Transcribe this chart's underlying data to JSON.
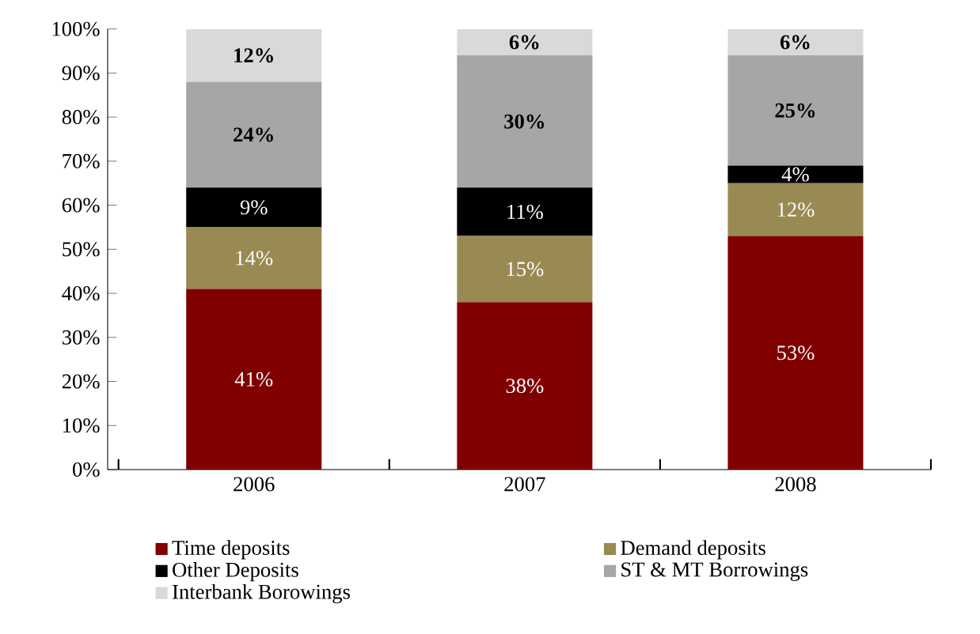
{
  "chart_data": {
    "type": "bar",
    "stacked": true,
    "categories": [
      "2006",
      "2007",
      "2008"
    ],
    "series": [
      {
        "name": "Time deposits",
        "color": "#800000",
        "values": [
          41,
          38,
          53
        ],
        "value_labels": [
          "41%",
          "38%",
          "53%"
        ]
      },
      {
        "name": "Demand deposits",
        "color": "#998a53",
        "values": [
          14,
          15,
          12
        ],
        "value_labels": [
          "14%",
          "15%",
          "12%"
        ]
      },
      {
        "name": "Other Deposits",
        "color": "#000000",
        "values": [
          9,
          11,
          4
        ],
        "value_labels": [
          "9%",
          "11%",
          "4%"
        ]
      },
      {
        "name": "ST & MT Borrowings",
        "color": "#a6a6a6",
        "values": [
          24,
          30,
          25
        ],
        "value_labels": [
          "24%",
          "30%",
          "25%"
        ]
      },
      {
        "name": "Interbank Borowings",
        "color": "#d9d9d9",
        "values": [
          12,
          6,
          6
        ],
        "value_labels": [
          "12%",
          "6%",
          "6%"
        ]
      }
    ],
    "ylim": [
      0,
      100
    ],
    "yticks": [
      {
        "value": 0,
        "label": "0%"
      },
      {
        "value": 10,
        "label": "10%"
      },
      {
        "value": 20,
        "label": "20%"
      },
      {
        "value": 30,
        "label": "30%"
      },
      {
        "value": 40,
        "label": "40%"
      },
      {
        "value": 50,
        "label": "50%"
      },
      {
        "value": 60,
        "label": "60%"
      },
      {
        "value": 70,
        "label": "70%"
      },
      {
        "value": 80,
        "label": "80%"
      },
      {
        "value": 90,
        "label": "90%"
      },
      {
        "value": 100,
        "label": "100%"
      }
    ],
    "grid": false,
    "legend": "bottom"
  }
}
